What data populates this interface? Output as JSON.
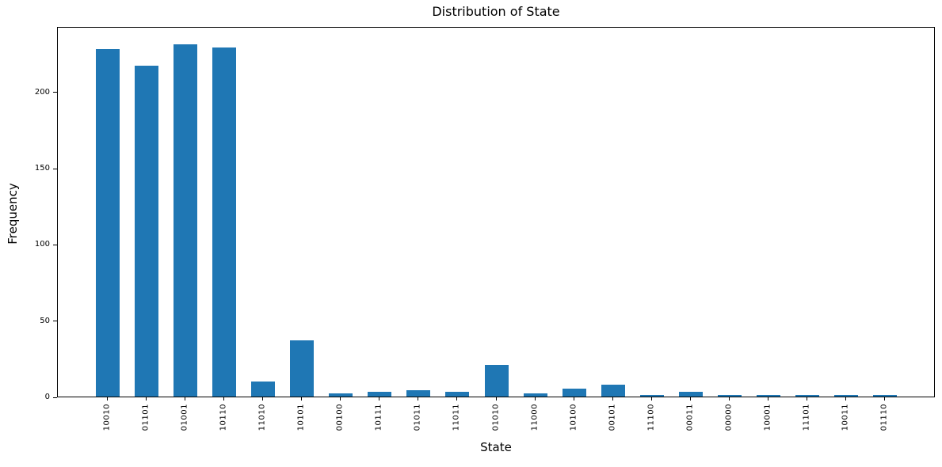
{
  "chart_data": {
    "type": "bar",
    "title": "Distribution of State",
    "xlabel": "State",
    "ylabel": "Frequency",
    "categories": [
      "10010",
      "01101",
      "01001",
      "10110",
      "11010",
      "10101",
      "00100",
      "10111",
      "01011",
      "11011",
      "01010",
      "11000",
      "10100",
      "00101",
      "11100",
      "00011",
      "00000",
      "10001",
      "11101",
      "10011",
      "01110"
    ],
    "values": [
      229,
      218,
      232,
      230,
      10,
      37,
      2,
      3,
      4,
      3,
      21,
      2,
      5,
      8,
      1,
      3,
      1,
      1,
      1,
      1,
      1
    ],
    "ylim": [
      0,
      243
    ],
    "yticks": [
      0,
      50,
      100,
      150,
      200
    ],
    "x_tick_rotation": 90,
    "grid": false,
    "legend_position": "none",
    "bar_color": "#1f77b4",
    "background_color": "#ffffff",
    "spine_color": "#000000",
    "text_color": "#000000"
  }
}
